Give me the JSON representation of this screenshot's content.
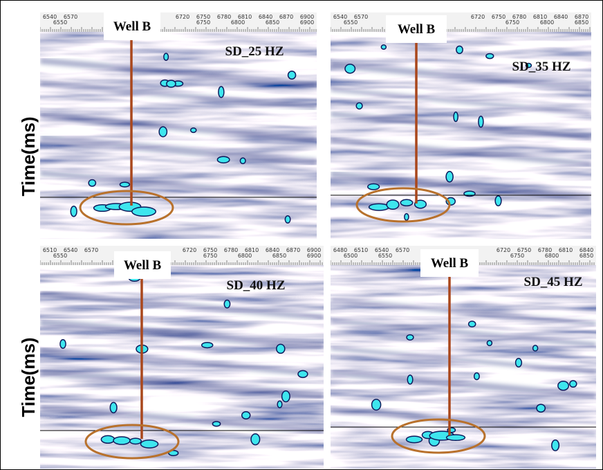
{
  "y_axis_labels": [
    "Time(ms)",
    "Time(ms)"
  ],
  "panels": [
    {
      "well": "Well B",
      "label": "SD_25 HZ",
      "ticks_upper": [
        "6540",
        "6570",
        "6720",
        "6750",
        "6780",
        "6810",
        "6840",
        "6870",
        "6900"
      ],
      "ticks_lower": [
        "6550",
        "6750",
        "6800",
        "6850",
        "6900"
      ]
    },
    {
      "well": "Well B",
      "label": "SD_35 HZ",
      "ticks_upper": [
        "6540",
        "6570",
        "6720",
        "6750",
        "6780",
        "6810",
        "6840",
        "6870"
      ],
      "ticks_lower": [
        "6550",
        "6750",
        "6800",
        "6850"
      ]
    },
    {
      "well": "Well B",
      "label": "SD_40 HZ",
      "ticks_upper": [
        "6510",
        "6540",
        "6570",
        "6720",
        "6750",
        "6780",
        "6810",
        "6840",
        "6870",
        "6900"
      ],
      "ticks_lower": [
        "6550",
        "6750",
        "6800",
        "6850",
        "6900"
      ]
    },
    {
      "well": "Well B",
      "label": "SD_45 HZ",
      "ticks_upper": [
        "6480",
        "6510",
        "6540",
        "6570",
        "6720",
        "6750",
        "6780",
        "6810",
        "6840"
      ],
      "ticks_lower": [
        "6500",
        "6550",
        "6750",
        "6800",
        "6850"
      ]
    }
  ]
}
